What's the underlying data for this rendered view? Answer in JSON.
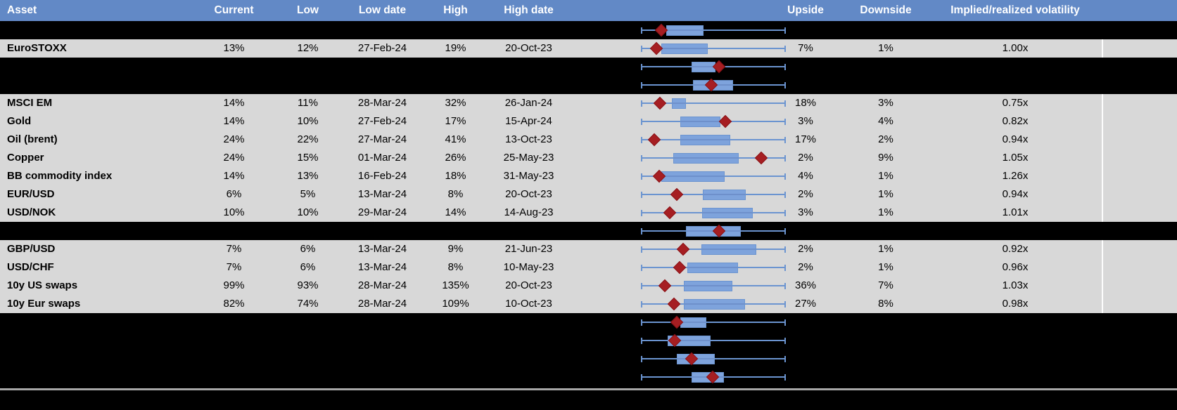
{
  "header": {
    "asset": "Asset",
    "current": "Current",
    "low": "Low",
    "low_date": "Low date",
    "high": "High",
    "high_date": "High date",
    "upside": "Upside",
    "downside": "Downside",
    "iv_rv": "Implied/realized volatility"
  },
  "colors": {
    "header_bg": "#6289C6",
    "header_text": "#FFFFFF",
    "row_gray": "#D8D8D8",
    "row_black": "#000000",
    "box_fill": "#7EA3DC",
    "box_border": "#6B94D0",
    "whisker": "#6B94D0",
    "diamond_fill": "#A61E22",
    "diamond_border": "#8B1216",
    "bottom_line": "#A7A7A7",
    "gray_row_right_divider": "#FDFDFD"
  },
  "chart_data": {
    "type": "table",
    "title": "Implied volatility ranges by asset with box-whisker range plots (whisker = full range, box = mid range, diamond = current)",
    "columns": [
      "Asset",
      "Current",
      "Low",
      "Low date",
      "High",
      "High date",
      "Range plot",
      "Upside",
      "Downside",
      "Implied/realized volatility"
    ],
    "plot_axis": {
      "range": [
        0,
        1
      ],
      "note": "normalized position across whisker span; whiskers always span 0 to 1",
      "grid": false,
      "legend": false
    },
    "rows": [
      {
        "kind": "spacer",
        "boxplot": {
          "whisker": [
            0,
            1
          ],
          "box": [
            0.171,
            0.422
          ],
          "marker": 0.137
        }
      },
      {
        "kind": "data",
        "asset": "EuroSTOXX",
        "current": "13%",
        "low": "12%",
        "low_date": "27-Feb-24",
        "high": "19%",
        "high_date": "20-Oct-23",
        "upside": "7%",
        "downside": "1%",
        "iv_rv": "1.00x",
        "boxplot": {
          "whisker": [
            0,
            1
          ],
          "box": [
            0.137,
            0.451
          ],
          "marker": 0.103
        }
      },
      {
        "kind": "spacer",
        "boxplot": {
          "whisker": [
            0,
            1
          ],
          "box": [
            0.348,
            0.505
          ],
          "marker": 0.539
        }
      },
      {
        "kind": "spacer",
        "boxplot": {
          "whisker": [
            0,
            1
          ],
          "box": [
            0.358,
            0.627
          ],
          "marker": 0.485
        }
      },
      {
        "kind": "data",
        "asset": "MSCI EM",
        "current": "14%",
        "low": "11%",
        "low_date": "28-Mar-24",
        "high": "32%",
        "high_date": "26-Jan-24",
        "upside": "18%",
        "downside": "3%",
        "iv_rv": "0.75x",
        "boxplot": {
          "whisker": [
            0,
            1
          ],
          "box": [
            0.211,
            0.299
          ],
          "marker": 0.127
        }
      },
      {
        "kind": "data",
        "asset": "Gold",
        "current": "14%",
        "low": "10%",
        "low_date": "27-Feb-24",
        "high": "17%",
        "high_date": "15-Apr-24",
        "upside": "3%",
        "downside": "4%",
        "iv_rv": "0.82x",
        "boxplot": {
          "whisker": [
            0,
            1
          ],
          "box": [
            0.27,
            0.539
          ],
          "marker": 0.583
        }
      },
      {
        "kind": "data",
        "asset": "Oil (brent)",
        "current": "24%",
        "low": "22%",
        "low_date": "27-Mar-24",
        "high": "41%",
        "high_date": "13-Oct-23",
        "upside": "17%",
        "downside": "2%",
        "iv_rv": "0.94x",
        "boxplot": {
          "whisker": [
            0,
            1
          ],
          "box": [
            0.27,
            0.608
          ],
          "marker": 0.088
        }
      },
      {
        "kind": "data",
        "asset": "Copper",
        "current": "24%",
        "low": "15%",
        "low_date": "01-Mar-24",
        "high": "26%",
        "high_date": "25-May-23",
        "upside": "2%",
        "downside": "9%",
        "iv_rv": "1.05x",
        "boxplot": {
          "whisker": [
            0,
            1
          ],
          "box": [
            0.221,
            0.667
          ],
          "marker": 0.833
        }
      },
      {
        "kind": "data",
        "asset": "BB commodity index",
        "current": "14%",
        "low": "13%",
        "low_date": "16-Feb-24",
        "high": "18%",
        "high_date": "31-May-23",
        "upside": "4%",
        "downside": "1%",
        "iv_rv": "1.26x",
        "boxplot": {
          "whisker": [
            0,
            1
          ],
          "box": [
            0.137,
            0.569
          ],
          "marker": 0.123
        }
      },
      {
        "kind": "data",
        "asset": "EUR/USD",
        "current": "6%",
        "low": "5%",
        "low_date": "13-Mar-24",
        "high": "8%",
        "high_date": "20-Oct-23",
        "upside": "2%",
        "downside": "1%",
        "iv_rv": "0.94x",
        "boxplot": {
          "whisker": [
            0,
            1
          ],
          "box": [
            0.427,
            0.716
          ],
          "marker": 0.245
        }
      },
      {
        "kind": "data",
        "asset": "USD/NOK",
        "current": "10%",
        "low": "10%",
        "low_date": "29-Mar-24",
        "high": "14%",
        "high_date": "14-Aug-23",
        "upside": "3%",
        "downside": "1%",
        "iv_rv": "1.01x",
        "boxplot": {
          "whisker": [
            0,
            1
          ],
          "box": [
            0.422,
            0.765
          ],
          "marker": 0.196
        }
      },
      {
        "kind": "spacer",
        "boxplot": {
          "whisker": [
            0,
            1
          ],
          "box": [
            0.309,
            0.681
          ],
          "marker": 0.539
        }
      },
      {
        "kind": "data",
        "asset": "GBP/USD",
        "current": "7%",
        "low": "6%",
        "low_date": "13-Mar-24",
        "high": "9%",
        "high_date": "21-Jun-23",
        "upside": "2%",
        "downside": "1%",
        "iv_rv": "0.92x",
        "boxplot": {
          "whisker": [
            0,
            1
          ],
          "box": [
            0.417,
            0.789
          ],
          "marker": 0.289
        }
      },
      {
        "kind": "data",
        "asset": "USD/CHF",
        "current": "7%",
        "low": "6%",
        "low_date": "13-Mar-24",
        "high": "8%",
        "high_date": "10-May-23",
        "upside": "2%",
        "downside": "1%",
        "iv_rv": "0.96x",
        "boxplot": {
          "whisker": [
            0,
            1
          ],
          "box": [
            0.319,
            0.662
          ],
          "marker": 0.265
        }
      },
      {
        "kind": "data",
        "asset": "10y US swaps",
        "current": "99%",
        "low": "93%",
        "low_date": "28-Mar-24",
        "high": "135%",
        "high_date": "20-Oct-23",
        "upside": "36%",
        "downside": "7%",
        "iv_rv": "1.03x",
        "boxplot": {
          "whisker": [
            0,
            1
          ],
          "box": [
            0.294,
            0.623
          ],
          "marker": 0.162
        }
      },
      {
        "kind": "data",
        "asset": "10y Eur swaps",
        "current": "82%",
        "low": "74%",
        "low_date": "28-Mar-24",
        "high": "109%",
        "high_date": "10-Oct-23",
        "upside": "27%",
        "downside": "8%",
        "iv_rv": "0.98x",
        "boxplot": {
          "whisker": [
            0,
            1
          ],
          "box": [
            0.294,
            0.711
          ],
          "marker": 0.225
        }
      },
      {
        "kind": "spacer",
        "boxplot": {
          "whisker": [
            0,
            1
          ],
          "box": [
            0.27,
            0.441
          ],
          "marker": 0.245
        }
      },
      {
        "kind": "spacer",
        "boxplot": {
          "whisker": [
            0,
            1
          ],
          "box": [
            0.181,
            0.471
          ],
          "marker": 0.23
        }
      },
      {
        "kind": "spacer",
        "boxplot": {
          "whisker": [
            0,
            1
          ],
          "box": [
            0.245,
            0.5
          ],
          "marker": 0.348
        }
      },
      {
        "kind": "spacer",
        "boxplot": {
          "whisker": [
            0,
            1
          ],
          "box": [
            0.348,
            0.564
          ],
          "marker": 0.495
        }
      }
    ]
  }
}
